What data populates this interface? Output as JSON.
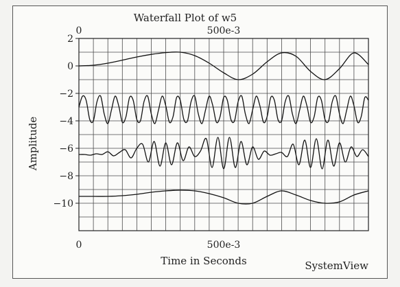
{
  "chart_data": {
    "type": "line",
    "title": "Waterfall Plot of w5",
    "xlabel": "Time in Seconds",
    "ylabel": "Amplitude",
    "watermark": "SystemView",
    "xlim": [
      0,
      1.0
    ],
    "ylim": [
      -12,
      2
    ],
    "top_tick_labels": [
      "0",
      "500e-3"
    ],
    "bottom_tick_labels": [
      "0",
      "500e-3"
    ],
    "y_tick_values": [
      2,
      0,
      -2,
      -4,
      -6,
      -8,
      -10
    ],
    "y_tick_labels": [
      "2",
      "0",
      "−2",
      "−4",
      "−6",
      "−8",
      "−10"
    ],
    "grid": true,
    "line_color": "#111111",
    "series": [
      {
        "x": [
          0,
          0.05,
          0.1,
          0.15,
          0.2,
          0.25,
          0.3,
          0.35,
          0.4,
          0.45,
          0.5,
          0.55,
          0.6,
          0.65,
          0.7,
          0.75,
          0.8,
          0.85,
          0.9,
          0.95,
          1.0
        ],
        "y": [
          0.0,
          0.05,
          0.2,
          0.42,
          0.65,
          0.84,
          0.97,
          1.0,
          0.75,
          0.2,
          -0.5,
          -1.0,
          -0.6,
          0.3,
          0.95,
          0.7,
          -0.4,
          -1.0,
          -0.2,
          0.95,
          0.1
        ]
      },
      {
        "x": [
          0,
          0.0125,
          0.025,
          0.0375,
          0.05,
          0.0625,
          0.075,
          0.0875,
          0.1,
          0.1125,
          0.125,
          0.1375,
          0.15,
          0.1625,
          0.175,
          0.1875,
          0.2,
          0.2125,
          0.225,
          0.2375,
          0.25,
          0.2625,
          0.275,
          0.2875,
          0.3,
          0.3125,
          0.325,
          0.3375,
          0.35,
          0.3625,
          0.375,
          0.3875,
          0.4,
          0.4125,
          0.425,
          0.4375,
          0.45,
          0.4625,
          0.475,
          0.4875,
          0.5,
          0.5125,
          0.525,
          0.5375,
          0.55,
          0.5625,
          0.575,
          0.5875,
          0.6,
          0.6125,
          0.625,
          0.6375,
          0.65,
          0.6625,
          0.675,
          0.6875,
          0.7,
          0.7125,
          0.725,
          0.7375,
          0.75,
          0.7625,
          0.775,
          0.7875,
          0.8,
          0.8125,
          0.825,
          0.8375,
          0.85,
          0.8625,
          0.875,
          0.8875,
          0.9,
          0.9125,
          0.925,
          0.9375,
          0.95,
          0.9625,
          0.975,
          0.9875,
          1.0
        ],
        "y": [
          -3.0,
          -2.2,
          -2.5,
          -3.9,
          -4.0,
          -2.6,
          -2.2,
          -3.5,
          -4.2,
          -3.2,
          -2.2,
          -2.9,
          -4.1,
          -3.7,
          -2.3,
          -2.5,
          -3.9,
          -4.0,
          -2.6,
          -2.2,
          -3.5,
          -4.2,
          -3.2,
          -2.2,
          -2.9,
          -4.1,
          -3.7,
          -2.3,
          -2.5,
          -3.9,
          -4.0,
          -2.6,
          -2.2,
          -3.5,
          -4.2,
          -3.2,
          -2.2,
          -2.9,
          -4.1,
          -3.7,
          -2.3,
          -2.5,
          -3.9,
          -4.0,
          -2.6,
          -2.2,
          -3.5,
          -4.2,
          -3.2,
          -2.2,
          -2.9,
          -4.1,
          -3.7,
          -2.3,
          -2.5,
          -3.9,
          -4.0,
          -2.6,
          -2.2,
          -3.5,
          -4.2,
          -3.2,
          -2.2,
          -2.9,
          -4.1,
          -3.7,
          -2.3,
          -2.5,
          -3.9,
          -4.0,
          -2.6,
          -2.2,
          -3.5,
          -4.2,
          -3.2,
          -2.2,
          -2.9,
          -4.1,
          -3.7,
          -2.3,
          -2.5
        ]
      },
      {
        "x": [
          0,
          0.02,
          0.04,
          0.06,
          0.08,
          0.1,
          0.12,
          0.14,
          0.16,
          0.18,
          0.2,
          0.22,
          0.24,
          0.26,
          0.28,
          0.3,
          0.32,
          0.34,
          0.36,
          0.38,
          0.4,
          0.42,
          0.44,
          0.46,
          0.48,
          0.5,
          0.52,
          0.54,
          0.56,
          0.58,
          0.6,
          0.62,
          0.64,
          0.66,
          0.68,
          0.7,
          0.72,
          0.74,
          0.76,
          0.78,
          0.8,
          0.82,
          0.84,
          0.86,
          0.88,
          0.9,
          0.92,
          0.94,
          0.96,
          0.98,
          1.0
        ],
        "y": [
          -6.45,
          -6.45,
          -6.5,
          -6.4,
          -6.45,
          -6.25,
          -6.55,
          -6.3,
          -6.1,
          -6.7,
          -6.0,
          -5.7,
          -7.0,
          -5.5,
          -7.3,
          -5.6,
          -7.2,
          -5.6,
          -6.9,
          -5.9,
          -6.6,
          -6.2,
          -5.3,
          -7.4,
          -5.2,
          -7.5,
          -5.2,
          -7.4,
          -5.5,
          -7.2,
          -5.9,
          -6.8,
          -6.2,
          -6.5,
          -6.4,
          -6.3,
          -6.6,
          -5.7,
          -7.2,
          -5.4,
          -7.4,
          -5.3,
          -7.5,
          -5.4,
          -7.3,
          -5.6,
          -7.0,
          -5.9,
          -6.6,
          -6.1,
          -6.6
        ]
      },
      {
        "x": [
          0,
          0.05,
          0.1,
          0.15,
          0.2,
          0.25,
          0.3,
          0.35,
          0.4,
          0.45,
          0.5,
          0.55,
          0.6,
          0.65,
          0.7,
          0.75,
          0.8,
          0.85,
          0.9,
          0.95,
          1.0
        ],
        "y": [
          -9.5,
          -9.5,
          -9.5,
          -9.45,
          -9.35,
          -9.2,
          -9.1,
          -9.05,
          -9.1,
          -9.3,
          -9.6,
          -10.0,
          -10.0,
          -9.5,
          -9.1,
          -9.4,
          -9.8,
          -10.0,
          -9.9,
          -9.4,
          -9.1
        ]
      }
    ]
  }
}
